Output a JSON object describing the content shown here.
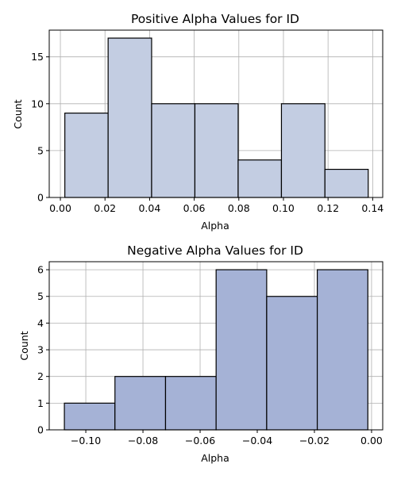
{
  "chart_data": [
    {
      "type": "bar",
      "title": "Positive Alpha Values for ID",
      "xlabel": "Alpha",
      "ylabel": "Count",
      "bin_edges": [
        0.002,
        0.0214,
        0.0409,
        0.0603,
        0.0797,
        0.0991,
        0.1186,
        0.138
      ],
      "values": [
        9,
        17,
        10,
        10,
        4,
        10,
        3
      ],
      "xlim": [
        -0.005,
        0.1445
      ],
      "ylim": [
        0,
        17.85
      ],
      "xticks": [
        0.0,
        0.02,
        0.04,
        0.06,
        0.08,
        0.1,
        0.12,
        0.14
      ],
      "xtick_labels": [
        "0.00",
        "0.02",
        "0.04",
        "0.06",
        "0.08",
        "0.10",
        "0.12",
        "0.14"
      ],
      "yticks": [
        0,
        5,
        10,
        15
      ],
      "ytick_labels": [
        "0",
        "5",
        "10",
        "15"
      ],
      "grid": true,
      "bar_color": "#c3cde2",
      "edge_color": "#000000"
    },
    {
      "type": "bar",
      "title": "Negative Alpha Values for ID",
      "xlabel": "Alpha",
      "ylabel": "Count",
      "bin_edges": [
        -0.1075,
        -0.0898,
        -0.0721,
        -0.0544,
        -0.0367,
        -0.019,
        -0.0013
      ],
      "values": [
        1,
        2,
        2,
        6,
        5,
        6
      ],
      "xlim": [
        -0.1128,
        0.0039
      ],
      "ylim": [
        0,
        6.3
      ],
      "xticks": [
        -0.1,
        -0.08,
        -0.06,
        -0.04,
        -0.02,
        0.0
      ],
      "xtick_labels": [
        "−0.10",
        "−0.08",
        "−0.06",
        "−0.04",
        "−0.02",
        "0.00"
      ],
      "yticks": [
        0,
        1,
        2,
        3,
        4,
        5,
        6
      ],
      "ytick_labels": [
        "0",
        "1",
        "2",
        "3",
        "4",
        "5",
        "6"
      ],
      "grid": true,
      "bar_color": "#a5b2d6",
      "edge_color": "#000000"
    }
  ]
}
